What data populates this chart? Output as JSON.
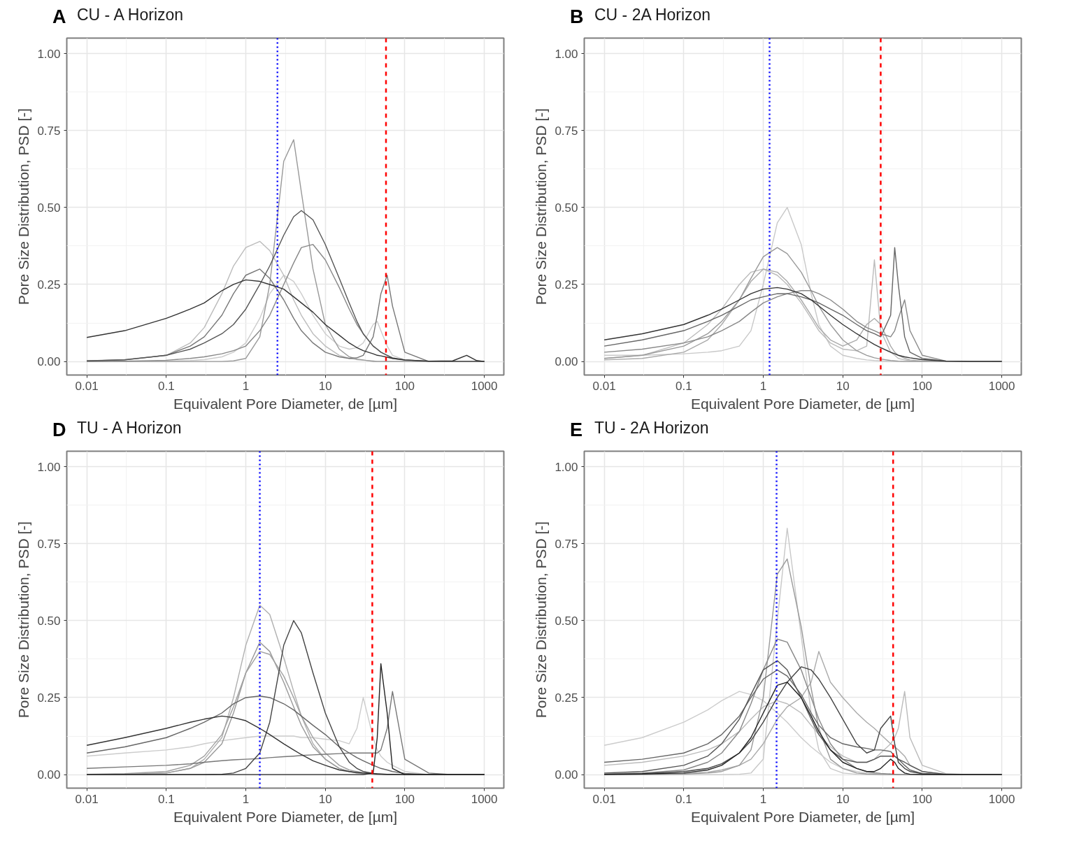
{
  "chart_data": [
    {
      "type": "line",
      "title": "CU - A Horizon",
      "annotations": [
        "A"
      ],
      "xlabel": "Equivalent Pore Diameter, de [µm]",
      "ylabel": "Pore Size Distribution, PSD [-]",
      "log": "x",
      "grid": true,
      "xlim": [
        0.0056,
        1760
      ],
      "ylim": [
        -0.044,
        1.05
      ],
      "xticks": [
        0.01,
        0.1,
        1,
        10,
        100,
        1000
      ],
      "yticks": [
        {
          "value": 0,
          "label": "0.00"
        },
        {
          "value": 0.25,
          "label": "0.25"
        },
        {
          "value": 0.5,
          "label": "0.50"
        },
        {
          "value": 0.75,
          "label": "0.75"
        },
        {
          "value": 1,
          "label": "1.00"
        }
      ],
      "ref_lines": [
        {
          "axis": "x",
          "value": 2.5,
          "color": "#0000ff",
          "line_style": "dotted"
        },
        {
          "axis": "x",
          "value": 58,
          "color": "#ff0000",
          "line_style": "dashed"
        }
      ],
      "x": [
        0.01,
        0.03,
        0.1,
        0.2,
        0.3,
        0.5,
        0.7,
        1,
        1.5,
        2,
        3,
        4,
        5,
        7,
        10,
        15,
        20,
        25,
        30,
        40,
        45,
        50,
        60,
        70,
        100,
        200,
        400,
        600,
        800,
        1000
      ],
      "series": [
        {
          "color": "#cccccc",
          "values": [
            0,
            0,
            0.001,
            0.003,
            0.006,
            0.015,
            0.03,
            0.06,
            0.14,
            0.22,
            0.28,
            0.26,
            0.22,
            0.15,
            0.09,
            0.05,
            0.04,
            0.045,
            0.06,
            0.12,
            0.13,
            0.1,
            0.05,
            0.02,
            0.005,
            0,
            0,
            0,
            0,
            0
          ]
        },
        {
          "color": "#bbbbbb",
          "values": [
            0.002,
            0.005,
            0.02,
            0.06,
            0.11,
            0.22,
            0.31,
            0.37,
            0.39,
            0.36,
            0.28,
            0.2,
            0.15,
            0.09,
            0.05,
            0.02,
            0.01,
            0.006,
            0.004,
            0.002,
            0,
            0,
            0,
            0,
            0,
            0,
            0,
            0,
            0,
            0
          ]
        },
        {
          "color": "#999999",
          "values": [
            0,
            0,
            0,
            0,
            0,
            0,
            0.002,
            0.01,
            0.08,
            0.25,
            0.65,
            0.72,
            0.55,
            0.3,
            0.12,
            0.04,
            0.015,
            0.008,
            0.005,
            0,
            0,
            0,
            0,
            0,
            0,
            0,
            0,
            0,
            0,
            0
          ]
        },
        {
          "color": "#888888",
          "values": [
            0,
            0.001,
            0.004,
            0.01,
            0.015,
            0.025,
            0.035,
            0.05,
            0.1,
            0.15,
            0.25,
            0.32,
            0.37,
            0.38,
            0.33,
            0.24,
            0.17,
            0.12,
            0.09,
            0.05,
            0.04,
            0.03,
            0.02,
            0.01,
            0.004,
            0,
            0,
            0,
            0,
            0
          ]
        },
        {
          "color": "#777777",
          "values": [
            0.002,
            0.006,
            0.02,
            0.05,
            0.08,
            0.15,
            0.22,
            0.28,
            0.3,
            0.27,
            0.2,
            0.14,
            0.1,
            0.06,
            0.03,
            0.015,
            0.01,
            0.012,
            0.02,
            0.08,
            0.15,
            0.22,
            0.28,
            0.18,
            0.03,
            0,
            0,
            0,
            0,
            0
          ]
        },
        {
          "color": "#555555",
          "values": [
            0.002,
            0.005,
            0.02,
            0.04,
            0.06,
            0.09,
            0.12,
            0.17,
            0.25,
            0.31,
            0.41,
            0.47,
            0.49,
            0.46,
            0.38,
            0.27,
            0.19,
            0.13,
            0.09,
            0.05,
            0.04,
            0.03,
            0.02,
            0.012,
            0.005,
            0.001,
            0,
            0,
            0,
            0
          ]
        },
        {
          "color": "#333333",
          "values": [
            0.078,
            0.1,
            0.14,
            0.17,
            0.19,
            0.23,
            0.25,
            0.265,
            0.26,
            0.25,
            0.235,
            0.21,
            0.19,
            0.16,
            0.12,
            0.085,
            0.06,
            0.045,
            0.035,
            0.025,
            0.02,
            0.018,
            0.014,
            0.01,
            0.005,
            0.001,
            0.002,
            0.02,
            0.003,
            0
          ]
        }
      ]
    },
    {
      "type": "line",
      "title": "CU - 2A Horizon",
      "annotations": [
        "B"
      ],
      "xlabel": "Equivalent Pore Diameter, de [µm]",
      "ylabel": "Pore Size Distribution, PSD [-]",
      "log": "x",
      "grid": true,
      "xlim": [
        0.0056,
        1760
      ],
      "ylim": [
        -0.044,
        1.05
      ],
      "xticks": [
        0.01,
        0.1,
        1,
        10,
        100,
        1000
      ],
      "yticks": [
        {
          "value": 0,
          "label": "0.00"
        },
        {
          "value": 0.25,
          "label": "0.25"
        },
        {
          "value": 0.5,
          "label": "0.50"
        },
        {
          "value": 0.75,
          "label": "0.75"
        },
        {
          "value": 1,
          "label": "1.00"
        }
      ],
      "ref_lines": [
        {
          "axis": "x",
          "value": 1.2,
          "color": "#0000ff",
          "line_style": "dotted"
        },
        {
          "axis": "x",
          "value": 30,
          "color": "#ff0000",
          "line_style": "dashed"
        }
      ],
      "x": [
        0.01,
        0.03,
        0.1,
        0.2,
        0.3,
        0.5,
        0.7,
        1,
        1.5,
        2,
        3,
        4,
        5,
        7,
        10,
        15,
        20,
        25,
        30,
        40,
        45,
        50,
        60,
        70,
        100,
        200,
        400,
        600,
        800,
        1000
      ],
      "series": [
        {
          "color": "#c8c8c8",
          "values": [
            0.02,
            0.02,
            0.025,
            0.03,
            0.035,
            0.05,
            0.1,
            0.25,
            0.45,
            0.5,
            0.38,
            0.22,
            0.12,
            0.05,
            0.02,
            0.01,
            0.005,
            0.003,
            0.002,
            0,
            0,
            0,
            0,
            0,
            0,
            0,
            0,
            0,
            0,
            0
          ]
        },
        {
          "color": "#bbbbbb",
          "values": [
            0.01,
            0.02,
            0.06,
            0.12,
            0.17,
            0.25,
            0.29,
            0.3,
            0.28,
            0.25,
            0.19,
            0.14,
            0.1,
            0.06,
            0.04,
            0.035,
            0.05,
            0.33,
            0.1,
            0.03,
            0.02,
            0.01,
            0.005,
            0.002,
            0.001,
            0,
            0,
            0,
            0,
            0
          ]
        },
        {
          "color": "#aaaaaa",
          "values": [
            0.005,
            0.01,
            0.03,
            0.07,
            0.12,
            0.2,
            0.26,
            0.3,
            0.29,
            0.26,
            0.2,
            0.15,
            0.11,
            0.07,
            0.05,
            0.07,
            0.12,
            0.14,
            0.12,
            0.05,
            0.03,
            0.02,
            0.01,
            0.005,
            0.001,
            0,
            0,
            0,
            0,
            0
          ]
        },
        {
          "color": "#999999",
          "values": [
            0.01,
            0.02,
            0.05,
            0.09,
            0.13,
            0.2,
            0.27,
            0.34,
            0.37,
            0.35,
            0.29,
            0.23,
            0.18,
            0.12,
            0.07,
            0.035,
            0.02,
            0.012,
            0.008,
            0.003,
            0.002,
            0.001,
            0,
            0,
            0,
            0,
            0,
            0,
            0,
            0
          ]
        },
        {
          "color": "#888888",
          "values": [
            0.03,
            0.04,
            0.06,
            0.08,
            0.1,
            0.13,
            0.16,
            0.19,
            0.21,
            0.22,
            0.23,
            0.23,
            0.22,
            0.2,
            0.17,
            0.13,
            0.11,
            0.1,
            0.09,
            0.08,
            0.1,
            0.14,
            0.2,
            0.1,
            0.02,
            0.001,
            0,
            0,
            0,
            0
          ]
        },
        {
          "color": "#666666",
          "values": [
            0.05,
            0.07,
            0.1,
            0.13,
            0.15,
            0.18,
            0.2,
            0.21,
            0.22,
            0.22,
            0.21,
            0.2,
            0.19,
            0.17,
            0.15,
            0.12,
            0.1,
            0.09,
            0.08,
            0.15,
            0.37,
            0.25,
            0.08,
            0.03,
            0.01,
            0.001,
            0,
            0,
            0,
            0
          ]
        },
        {
          "color": "#333333",
          "values": [
            0.07,
            0.09,
            0.12,
            0.15,
            0.17,
            0.2,
            0.22,
            0.235,
            0.24,
            0.235,
            0.22,
            0.2,
            0.18,
            0.15,
            0.12,
            0.09,
            0.07,
            0.055,
            0.045,
            0.03,
            0.025,
            0.02,
            0.015,
            0.012,
            0.006,
            0.001,
            0,
            0,
            0,
            0
          ]
        }
      ]
    },
    {
      "type": "line",
      "title": "TU - A Horizon",
      "annotations": [
        "D"
      ],
      "xlabel": "Equivalent Pore Diameter, de [µm]",
      "ylabel": "Pore Size Distribution, PSD [-]",
      "log": "x",
      "grid": true,
      "xlim": [
        0.0056,
        1760
      ],
      "ylim": [
        -0.044,
        1.05
      ],
      "xticks": [
        0.01,
        0.1,
        1,
        10,
        100,
        1000
      ],
      "yticks": [
        {
          "value": 0,
          "label": "0.00"
        },
        {
          "value": 0.25,
          "label": "0.25"
        },
        {
          "value": 0.5,
          "label": "0.50"
        },
        {
          "value": 0.75,
          "label": "0.75"
        },
        {
          "value": 1,
          "label": "1.00"
        }
      ],
      "ref_lines": [
        {
          "axis": "x",
          "value": 1.5,
          "color": "#0000ff",
          "line_style": "dotted"
        },
        {
          "axis": "x",
          "value": 39,
          "color": "#ff0000",
          "line_style": "dashed"
        }
      ],
      "x": [
        0.01,
        0.03,
        0.1,
        0.2,
        0.3,
        0.5,
        0.7,
        1,
        1.5,
        2,
        3,
        4,
        5,
        7,
        10,
        15,
        20,
        25,
        30,
        40,
        45,
        50,
        60,
        70,
        100,
        200,
        400,
        600,
        800,
        1000
      ],
      "series": [
        {
          "color": "#cccccc",
          "values": [
            0.06,
            0.07,
            0.08,
            0.09,
            0.1,
            0.11,
            0.115,
            0.12,
            0.125,
            0.125,
            0.125,
            0.125,
            0.12,
            0.12,
            0.115,
            0.11,
            0.1,
            0.15,
            0.25,
            0.12,
            0.08,
            0.06,
            0.04,
            0.03,
            0.01,
            0,
            0,
            0,
            0,
            0
          ]
        },
        {
          "color": "#b0b0b0",
          "values": [
            0,
            0.001,
            0.005,
            0.02,
            0.05,
            0.12,
            0.25,
            0.42,
            0.55,
            0.52,
            0.38,
            0.27,
            0.19,
            0.1,
            0.05,
            0.02,
            0.01,
            0.005,
            0.003,
            0.001,
            0,
            0,
            0,
            0,
            0,
            0,
            0,
            0,
            0,
            0
          ]
        },
        {
          "color": "#999999",
          "values": [
            0,
            0.001,
            0.005,
            0.02,
            0.04,
            0.1,
            0.2,
            0.33,
            0.43,
            0.4,
            0.3,
            0.22,
            0.16,
            0.09,
            0.05,
            0.02,
            0.01,
            0.005,
            0.003,
            0.001,
            0,
            0,
            0,
            0,
            0,
            0,
            0,
            0,
            0,
            0
          ]
        },
        {
          "color": "#a0a0a0",
          "values": [
            0.001,
            0.003,
            0.01,
            0.03,
            0.06,
            0.13,
            0.22,
            0.33,
            0.4,
            0.39,
            0.32,
            0.25,
            0.19,
            0.12,
            0.07,
            0.03,
            0.015,
            0.01,
            0.006,
            0.003,
            0.002,
            0.001,
            0,
            0,
            0,
            0,
            0,
            0,
            0,
            0
          ]
        },
        {
          "color": "#777777",
          "values": [
            0.02,
            0.025,
            0.03,
            0.035,
            0.04,
            0.045,
            0.048,
            0.05,
            0.052,
            0.055,
            0.058,
            0.06,
            0.062,
            0.064,
            0.066,
            0.068,
            0.07,
            0.07,
            0.07,
            0.07,
            0.07,
            0.08,
            0.15,
            0.27,
            0.05,
            0.005,
            0,
            0,
            0,
            0
          ]
        },
        {
          "color": "#666666",
          "values": [
            0.07,
            0.09,
            0.12,
            0.15,
            0.17,
            0.2,
            0.23,
            0.25,
            0.255,
            0.25,
            0.23,
            0.21,
            0.19,
            0.16,
            0.13,
            0.09,
            0.07,
            0.055,
            0.045,
            0.03,
            0.025,
            0.02,
            0.015,
            0.01,
            0.004,
            0,
            0,
            0,
            0,
            0
          ]
        },
        {
          "color": "#444444",
          "values": [
            0,
            0,
            0,
            0,
            0,
            0.001,
            0.005,
            0.02,
            0.07,
            0.17,
            0.42,
            0.5,
            0.46,
            0.33,
            0.2,
            0.09,
            0.04,
            0.02,
            0.01,
            0.004,
            0.002,
            0.001,
            0,
            0,
            0,
            0,
            0,
            0,
            0,
            0
          ]
        },
        {
          "color": "#333333",
          "values": [
            0.095,
            0.12,
            0.15,
            0.17,
            0.18,
            0.19,
            0.185,
            0.175,
            0.15,
            0.13,
            0.1,
            0.08,
            0.065,
            0.045,
            0.03,
            0.015,
            0.01,
            0.007,
            0.005,
            0.003,
            0.002,
            0.002,
            0.001,
            0.001,
            0,
            0,
            0,
            0,
            0,
            0
          ]
        },
        {
          "color": "#222222",
          "values": [
            0,
            0,
            0,
            0,
            0,
            0,
            0,
            0,
            0,
            0,
            0,
            0,
            0,
            0,
            0,
            0,
            0,
            0,
            0,
            0.005,
            0.12,
            0.36,
            0.2,
            0.02,
            0,
            0,
            0,
            0,
            0,
            0
          ]
        }
      ]
    },
    {
      "type": "line",
      "title": "TU - 2A Horizon",
      "annotations": [
        "E"
      ],
      "xlabel": "Equivalent Pore Diameter, de [µm]",
      "ylabel": "Pore Size Distribution, PSD [-]",
      "log": "x",
      "grid": true,
      "xlim": [
        0.0056,
        1760
      ],
      "ylim": [
        -0.044,
        1.05
      ],
      "xticks": [
        0.01,
        0.1,
        1,
        10,
        100,
        1000
      ],
      "yticks": [
        {
          "value": 0,
          "label": "0.00"
        },
        {
          "value": 0.25,
          "label": "0.25"
        },
        {
          "value": 0.5,
          "label": "0.50"
        },
        {
          "value": 0.75,
          "label": "0.75"
        },
        {
          "value": 1,
          "label": "1.00"
        }
      ],
      "ref_lines": [
        {
          "axis": "x",
          "value": 1.47,
          "color": "#0000ff",
          "line_style": "dotted"
        },
        {
          "axis": "x",
          "value": 43,
          "color": "#ff0000",
          "line_style": "dashed"
        }
      ],
      "x": [
        0.01,
        0.03,
        0.1,
        0.2,
        0.3,
        0.5,
        0.7,
        1,
        1.5,
        2,
        3,
        4,
        5,
        7,
        10,
        15,
        20,
        25,
        30,
        40,
        45,
        50,
        60,
        70,
        100,
        200,
        400,
        600,
        800,
        1000
      ],
      "series": [
        {
          "color": "#cccccc",
          "values": [
            0.095,
            0.12,
            0.17,
            0.21,
            0.24,
            0.27,
            0.26,
            0.24,
            0.2,
            0.17,
            0.12,
            0.09,
            0.07,
            0.04,
            0.02,
            0.01,
            0.005,
            0.003,
            0.002,
            0,
            0,
            0,
            0,
            0,
            0,
            0,
            0,
            0,
            0,
            0
          ]
        },
        {
          "color": "#c8c8c8",
          "values": [
            0,
            0,
            0,
            0,
            0,
            0.001,
            0.005,
            0.05,
            0.5,
            0.8,
            0.45,
            0.2,
            0.08,
            0.02,
            0.005,
            0.001,
            0,
            0,
            0,
            0,
            0,
            0,
            0,
            0,
            0,
            0,
            0,
            0,
            0,
            0
          ]
        },
        {
          "color": "#bbbbbb",
          "values": [
            0.03,
            0.04,
            0.06,
            0.08,
            0.1,
            0.14,
            0.18,
            0.22,
            0.24,
            0.23,
            0.2,
            0.16,
            0.13,
            0.09,
            0.06,
            0.04,
            0.04,
            0.05,
            0.07,
            0.1,
            0.12,
            0.15,
            0.27,
            0.12,
            0.03,
            0.003,
            0,
            0,
            0,
            0
          ]
        },
        {
          "color": "#aaaaaa",
          "values": [
            0,
            0.001,
            0.003,
            0.008,
            0.015,
            0.03,
            0.05,
            0.1,
            0.18,
            0.22,
            0.25,
            0.3,
            0.4,
            0.3,
            0.25,
            0.2,
            0.17,
            0.15,
            0.13,
            0.1,
            0.09,
            0.08,
            0.06,
            0.03,
            0.01,
            0,
            0,
            0,
            0,
            0
          ]
        },
        {
          "color": "#999999",
          "values": [
            0,
            0,
            0.002,
            0.005,
            0.01,
            0.03,
            0.08,
            0.25,
            0.65,
            0.7,
            0.48,
            0.28,
            0.15,
            0.05,
            0.02,
            0.005,
            0.002,
            0.001,
            0,
            0,
            0,
            0,
            0,
            0,
            0,
            0,
            0,
            0,
            0,
            0
          ]
        },
        {
          "color": "#888888",
          "values": [
            0.002,
            0.005,
            0.015,
            0.04,
            0.07,
            0.14,
            0.23,
            0.34,
            0.44,
            0.43,
            0.34,
            0.25,
            0.18,
            0.1,
            0.05,
            0.02,
            0.01,
            0.006,
            0.004,
            0.002,
            0.001,
            0,
            0,
            0,
            0,
            0,
            0,
            0,
            0,
            0
          ]
        },
        {
          "color": "#666666",
          "values": [
            0.04,
            0.05,
            0.07,
            0.1,
            0.13,
            0.19,
            0.25,
            0.31,
            0.34,
            0.32,
            0.26,
            0.2,
            0.16,
            0.12,
            0.1,
            0.09,
            0.085,
            0.08,
            0.08,
            0.075,
            0.06,
            0.05,
            0.03,
            0.015,
            0.003,
            0,
            0,
            0,
            0,
            0
          ]
        },
        {
          "color": "#555555",
          "values": [
            0.005,
            0.01,
            0.03,
            0.06,
            0.1,
            0.18,
            0.26,
            0.34,
            0.37,
            0.34,
            0.25,
            0.18,
            0.13,
            0.08,
            0.05,
            0.04,
            0.04,
            0.05,
            0.06,
            0.06,
            0.06,
            0.05,
            0.04,
            0.03,
            0.01,
            0.001,
            0,
            0,
            0,
            0
          ]
        },
        {
          "color": "#444444",
          "values": [
            0.001,
            0.003,
            0.01,
            0.02,
            0.035,
            0.07,
            0.11,
            0.17,
            0.25,
            0.3,
            0.35,
            0.34,
            0.31,
            0.25,
            0.18,
            0.1,
            0.07,
            0.08,
            0.15,
            0.19,
            0.1,
            0.04,
            0.02,
            0.01,
            0.003,
            0,
            0,
            0,
            0,
            0
          ]
        },
        {
          "color": "#222222",
          "values": [
            0,
            0.002,
            0.005,
            0.015,
            0.03,
            0.07,
            0.12,
            0.2,
            0.29,
            0.3,
            0.25,
            0.19,
            0.14,
            0.08,
            0.04,
            0.02,
            0.01,
            0.01,
            0.02,
            0.05,
            0.04,
            0.02,
            0.005,
            0.001,
            0,
            0,
            0,
            0,
            0,
            0
          ]
        }
      ]
    }
  ]
}
